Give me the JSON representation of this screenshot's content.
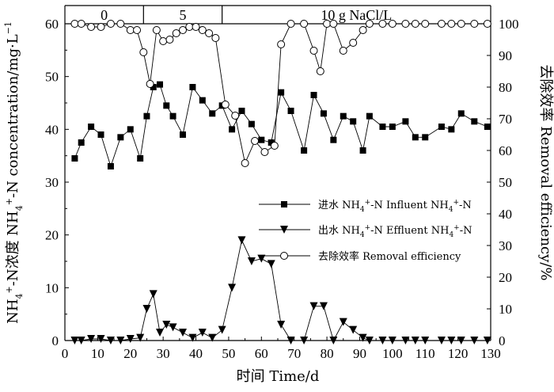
{
  "chart_data": {
    "type": "line",
    "xlabel": "时间 Time/d",
    "ylabel_left_prefix": "NH",
    "ylabel_left_sub": "4",
    "ylabel_left_sup": "+",
    "ylabel_left_mid": "-N浓度 NH",
    "ylabel_left_sub2": "4",
    "ylabel_left_sup2": "+",
    "ylabel_left_suffix": "-N concentration/mg·L",
    "ylabel_left_exp": "−1",
    "ylabel_right": "去除效率 Removal efficiency/%",
    "xlim": [
      0,
      130
    ],
    "ylim_left": [
      0,
      60
    ],
    "ylim_right": [
      0,
      100
    ],
    "x_ticks": [
      "0",
      "10",
      "20",
      "30",
      "40",
      "50",
      "60",
      "70",
      "80",
      "90",
      "100",
      "110",
      "120",
      "130"
    ],
    "y_left_ticks": [
      "0",
      "10",
      "20",
      "30",
      "40",
      "50",
      "60"
    ],
    "y_right_ticks": [
      "0",
      "10",
      "20",
      "30",
      "40",
      "50",
      "60",
      "70",
      "80",
      "90",
      "100"
    ],
    "phases": [
      {
        "label": "0",
        "start": 0,
        "end": 24
      },
      {
        "label": "5",
        "start": 24,
        "end": 48
      },
      {
        "label": "10 g NaCl/L",
        "start": 48,
        "end": 130
      }
    ],
    "legend": [
      {
        "label_cn": "进水",
        "label_en": "Influent",
        "marker": "square"
      },
      {
        "label_cn": "出水",
        "label_en": "Effluent",
        "marker": "triangle-down"
      },
      {
        "label_cn": "去除效率",
        "label_en": "Removal efficiency",
        "marker": "circle-open"
      }
    ],
    "series": [
      {
        "name": "进水 NH4+-N Influent NH4+-N",
        "axis": "left",
        "marker": "square",
        "x": [
          3,
          5,
          8,
          11,
          14,
          17,
          20,
          23,
          25,
          27,
          29,
          31,
          33,
          36,
          39,
          42,
          45,
          48,
          51,
          54,
          57,
          60,
          63,
          66,
          69,
          73,
          76,
          79,
          82,
          85,
          88,
          91,
          93,
          97,
          100,
          104,
          107,
          110,
          115,
          118,
          121,
          125,
          129
        ],
        "y": [
          34.5,
          37.5,
          40.5,
          39,
          33,
          38.5,
          40,
          34.5,
          42.5,
          48,
          48.5,
          44.5,
          42.5,
          39,
          48,
          45.5,
          43,
          44.5,
          40,
          43.5,
          41,
          38,
          37.5,
          47,
          43.5,
          36,
          46.5,
          43,
          38,
          42.5,
          41.5,
          36,
          42.5,
          40.5,
          40.5,
          41.5,
          38.5,
          38.5,
          40.5,
          40,
          43,
          41.5,
          40.5
        ]
      },
      {
        "name": "出水 NH4+-N Effluent NH4+-N",
        "axis": "left",
        "marker": "triangle-down",
        "x": [
          3,
          5,
          8,
          11,
          14,
          17,
          20,
          23,
          25,
          27,
          29,
          31,
          33,
          36,
          39,
          42,
          45,
          48,
          51,
          54,
          57,
          60,
          63,
          66,
          69,
          73,
          76,
          79,
          82,
          85,
          88,
          91,
          93,
          97,
          100,
          104,
          107,
          110,
          115,
          118,
          121,
          125,
          129
        ],
        "y": [
          0,
          0,
          0.3,
          0.3,
          0,
          0,
          0.3,
          0.5,
          6,
          8.8,
          1.5,
          3,
          2.5,
          1.5,
          0.5,
          1.5,
          0.5,
          2,
          10,
          19,
          15,
          15.5,
          14.5,
          3,
          0,
          0,
          6.5,
          6.5,
          0,
          3.5,
          2,
          0.5,
          0,
          0,
          0,
          0,
          0,
          0,
          0,
          0,
          0,
          0,
          0
        ]
      },
      {
        "name": "去除效率 Removal efficiency",
        "axis": "right",
        "marker": "circle-open",
        "x": [
          3,
          5,
          8,
          11,
          14,
          17,
          20,
          22,
          24,
          26,
          28,
          30,
          32,
          34,
          36,
          38,
          40,
          42,
          44,
          46,
          49,
          52,
          55,
          58,
          61,
          64,
          66,
          69,
          73,
          76,
          78,
          80,
          82,
          85,
          88,
          91,
          93,
          97,
          100,
          104,
          107,
          110,
          115,
          118,
          121,
          125,
          129
        ],
        "y": [
          100,
          100,
          99,
          99,
          100,
          100,
          98,
          98,
          91,
          81,
          98,
          94.5,
          95,
          97,
          98,
          99,
          99,
          98,
          97,
          95.5,
          74.5,
          71,
          56,
          63,
          59.5,
          61.5,
          93.5,
          100,
          100,
          91.5,
          85,
          100,
          100,
          91.5,
          94,
          98,
          100,
          100,
          100,
          100,
          100,
          100,
          100,
          100,
          100,
          100,
          100
        ]
      }
    ]
  }
}
